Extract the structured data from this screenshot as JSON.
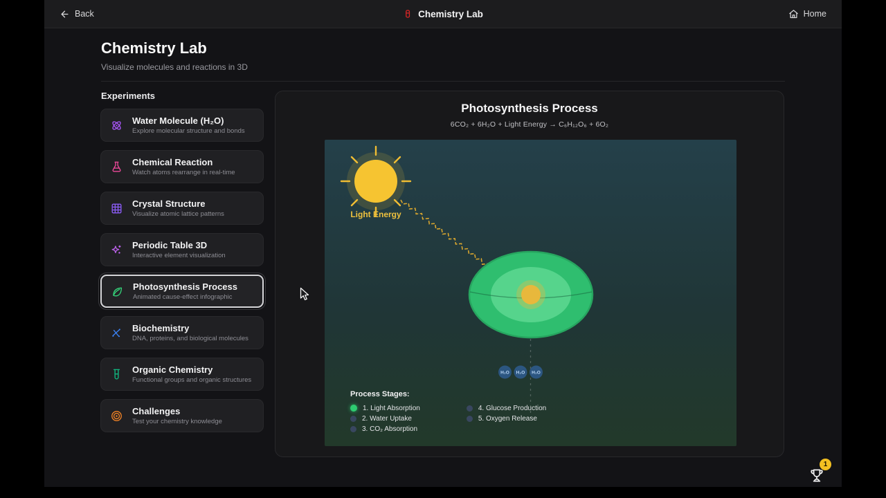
{
  "topbar": {
    "back_label": "Back",
    "app_title": "Chemistry Lab",
    "home_label": "Home"
  },
  "header": {
    "title": "Chemistry Lab",
    "subtitle": "Visualize molecules and reactions in 3D"
  },
  "sidebar": {
    "heading": "Experiments",
    "items": [
      {
        "label": "Water Molecule (H₂O)",
        "description": "Explore molecular structure and bonds",
        "icon": "atom-icon",
        "color": "#a855f7",
        "selected": false
      },
      {
        "label": "Chemical Reaction",
        "description": "Watch atoms rearrange in real-time",
        "icon": "flask-icon",
        "color": "#ec4899",
        "selected": false
      },
      {
        "label": "Crystal Structure",
        "description": "Visualize atomic lattice patterns",
        "icon": "grid-icon",
        "color": "#8b5cf6",
        "selected": false
      },
      {
        "label": "Periodic Table 3D",
        "description": "Interactive element visualization",
        "icon": "sparkles-icon",
        "color": "#c064f0",
        "selected": false
      },
      {
        "label": "Photosynthesis Process",
        "description": "Animated cause-effect infographic",
        "icon": "leaf-icon",
        "color": "#34d37a",
        "selected": true
      },
      {
        "label": "Biochemistry",
        "description": "DNA, proteins, and biological molecules",
        "icon": "dna-icon",
        "color": "#3b82f6",
        "selected": false
      },
      {
        "label": "Organic Chemistry",
        "description": "Functional groups and organic structures",
        "icon": "test-tube-icon",
        "color": "#10b981",
        "selected": false
      },
      {
        "label": "Challenges",
        "description": "Test your chemistry knowledge",
        "icon": "target-icon",
        "color": "#f08226",
        "selected": false
      }
    ]
  },
  "main": {
    "title": "Photosynthesis Process",
    "equation": "6CO₂ + 6H₂O + Light Energy → C₆H₁₂O₆ + 6O₂",
    "diagram": {
      "sun_label": "Light Energy",
      "molecules": [
        "H₂O",
        "H₂O",
        "H₂O"
      ],
      "stages_heading": "Process Stages:",
      "stages": [
        {
          "label": "1. Light Absorption",
          "active": true
        },
        {
          "label": "2. Water Uptake",
          "active": false
        },
        {
          "label": "3. CO₂ Absorption",
          "active": false
        },
        {
          "label": "4. Glucose Production",
          "active": false
        },
        {
          "label": "5. Oxygen Release",
          "active": false
        }
      ]
    }
  },
  "trophy": {
    "badge_count": "1"
  },
  "colors": {
    "accent_red": "#dc2626",
    "sun": "#f6c431",
    "light_energy_text": "#eec13e",
    "leaf_outer": "#2fbe6f",
    "leaf_stroke": "#27a55f",
    "leaf_inner": "#56d48c",
    "leaf_core": "#e8b83c",
    "stage_active": "#2ecc71",
    "stage_inactive": "#394760",
    "molecule_fill": "#2e5c8f",
    "molecule_text": "#bcd9f7",
    "badge": "#f3c021"
  }
}
